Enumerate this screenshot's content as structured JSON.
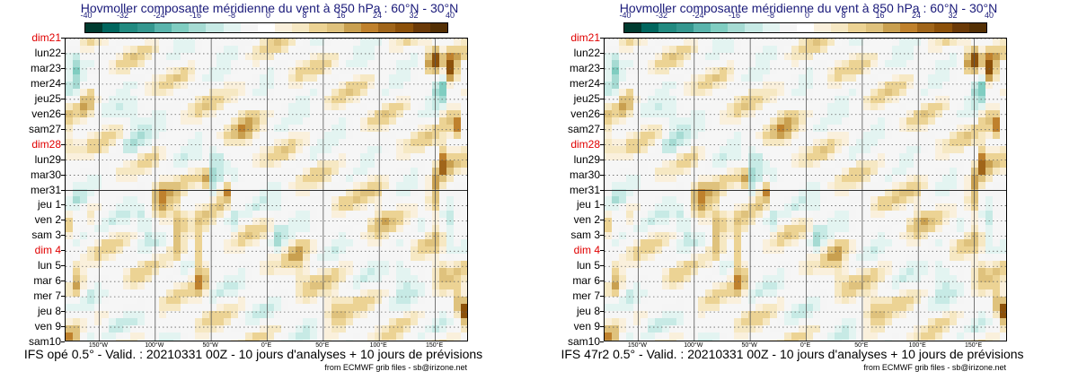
{
  "chart_data": [
    {
      "type": "heatmap",
      "title": "Hovmoller composante méridienne du vent à 850 hPa : 60°N - 30°N",
      "colorbar": {
        "ticks": [
          "-40",
          "-32",
          "-24",
          "-16",
          "-8",
          "0",
          "8",
          "16",
          "24",
          "32",
          "40"
        ],
        "colors": [
          "#003c30",
          "#01665e",
          "#228a80",
          "#35978f",
          "#5ab4ac",
          "#80cdc1",
          "#a6dbd3",
          "#c7eae5",
          "#e3f4f1",
          "#f5f5f5",
          "#ffffff",
          "#faf0dc",
          "#f6e8c3",
          "#ecd394",
          "#dfc27d",
          "#c9a050",
          "#bf812d",
          "#a0651a",
          "#8c510a",
          "#6b3a08",
          "#543005"
        ]
      },
      "y_labels": [
        {
          "text": "dim21",
          "sunday": true
        },
        {
          "text": "lun22",
          "sunday": false
        },
        {
          "text": "mar23",
          "sunday": false
        },
        {
          "text": "mer24",
          "sunday": false
        },
        {
          "text": "jeu25",
          "sunday": false
        },
        {
          "text": "ven26",
          "sunday": false
        },
        {
          "text": "sam27",
          "sunday": false
        },
        {
          "text": "dim28",
          "sunday": true
        },
        {
          "text": "lun29",
          "sunday": false
        },
        {
          "text": "mar30",
          "sunday": false
        },
        {
          "text": "mer31",
          "sunday": false
        },
        {
          "text": "jeu 1",
          "sunday": false
        },
        {
          "text": "ven 2",
          "sunday": false
        },
        {
          "text": "sam 3",
          "sunday": false
        },
        {
          "text": "dim 4",
          "sunday": true
        },
        {
          "text": "lun 5",
          "sunday": false
        },
        {
          "text": "mar 6",
          "sunday": false
        },
        {
          "text": "mer 7",
          "sunday": false
        },
        {
          "text": "jeu 8",
          "sunday": false
        },
        {
          "text": "ven 9",
          "sunday": false
        },
        {
          "text": "sam10",
          "sunday": false
        }
      ],
      "x_labels": [
        {
          "text": "150°W",
          "lon": -150
        },
        {
          "text": "100°W",
          "lon": -100
        },
        {
          "text": "50°W",
          "lon": -50
        },
        {
          "text": "0°E",
          "lon": 0
        },
        {
          "text": "50°E",
          "lon": 50
        },
        {
          "text": "100°E",
          "lon": 100
        },
        {
          "text": "150°E",
          "lon": 150
        }
      ],
      "xlim": [
        -180,
        180
      ],
      "analysis_split": "mer31",
      "footer": "IFS opé 0.5° - Valid. : 20210331 00Z - 10 jours d'analyses + 10 jours de prévisions",
      "credit": "from ECMWF grib files - sb@irizone.net",
      "features": [
        {
          "lon": -172,
          "day": 1.7,
          "value": -14,
          "rlon": 6,
          "rday": 1.6
        },
        {
          "lon": -160,
          "day": 4.0,
          "value": 14,
          "rlon": 7,
          "rday": 1.4
        },
        {
          "lon": -175,
          "day": 7.0,
          "value": 12,
          "rlon": 5,
          "rday": 1.2
        },
        {
          "lon": -168,
          "day": 12.0,
          "value": -12,
          "rlon": 6,
          "rday": 1.5
        },
        {
          "lon": -170,
          "day": 16.0,
          "value": 18,
          "rlon": 6,
          "rday": 1.3
        },
        {
          "lon": -160,
          "day": 19.3,
          "value": -14,
          "rlon": 5,
          "rday": 1.0
        },
        {
          "lon": -175,
          "day": 19.8,
          "value": 16,
          "rlon": 5,
          "rday": 0.8
        },
        {
          "lon": -120,
          "day": 6.5,
          "value": -10,
          "rlon": 10,
          "rday": 2.0
        },
        {
          "lon": -95,
          "day": 10.8,
          "value": 16,
          "rlon": 8,
          "rday": 1.6
        },
        {
          "lon": -80,
          "day": 12.8,
          "value": 20,
          "rlon": 7,
          "rday": 2.0
        },
        {
          "lon": -60,
          "day": 14.8,
          "value": 22,
          "rlon": 6,
          "rday": 2.2
        },
        {
          "lon": -55,
          "day": 9.3,
          "value": 24,
          "rlon": 5,
          "rday": 0.8
        },
        {
          "lon": -50,
          "day": 9.0,
          "value": -14,
          "rlon": 6,
          "rday": 0.8
        },
        {
          "lon": -45,
          "day": 8.0,
          "value": -12,
          "rlon": 5,
          "rday": 1.0
        },
        {
          "lon": -38,
          "day": 10.0,
          "value": 32,
          "rlon": 4,
          "rday": 0.7
        },
        {
          "lon": -30,
          "day": 11.5,
          "value": -10,
          "rlon": 6,
          "rday": 1.5
        },
        {
          "lon": -110,
          "day": 12.0,
          "value": -10,
          "rlon": 7,
          "rday": 1.2
        },
        {
          "lon": -20,
          "day": 5.5,
          "value": 8,
          "rlon": 12,
          "rday": 3.0
        },
        {
          "lon": 10,
          "day": 13.0,
          "value": -10,
          "rlon": 6,
          "rday": 2.0
        },
        {
          "lon": 30,
          "day": 15.0,
          "value": 10,
          "rlon": 10,
          "rday": 2.0
        },
        {
          "lon": 60,
          "day": 18.0,
          "value": 10,
          "rlon": 10,
          "rday": 2.0
        },
        {
          "lon": 100,
          "day": 11.0,
          "value": 8,
          "rlon": 12,
          "rday": 2.5
        },
        {
          "lon": 120,
          "day": 15.0,
          "value": -8,
          "rlon": 8,
          "rday": 2.0
        },
        {
          "lon": 148,
          "day": 1.3,
          "value": 30,
          "rlon": 6,
          "rday": 0.9
        },
        {
          "lon": 165,
          "day": 2.2,
          "value": 34,
          "rlon": 5,
          "rday": 0.9
        },
        {
          "lon": 155,
          "day": 3.5,
          "value": -16,
          "rlon": 5,
          "rday": 1.2
        },
        {
          "lon": 160,
          "day": 5.0,
          "value": 12,
          "rlon": 6,
          "rday": 1.0
        },
        {
          "lon": 170,
          "day": 5.8,
          "value": 26,
          "rlon": 5,
          "rday": 1.0
        },
        {
          "lon": 158,
          "day": 8.0,
          "value": 22,
          "rlon": 5,
          "rday": 1.2
        },
        {
          "lon": 150,
          "day": 10.5,
          "value": 20,
          "rlon": 6,
          "rday": 2.0
        },
        {
          "lon": 162,
          "day": 12.8,
          "value": -14,
          "rlon": 5,
          "rday": 1.2
        },
        {
          "lon": 155,
          "day": 15.5,
          "value": 12,
          "rlon": 8,
          "rday": 1.5
        },
        {
          "lon": 170,
          "day": 17.5,
          "value": 20,
          "rlon": 6,
          "rday": 1.2
        },
        {
          "lon": 176,
          "day": 18.0,
          "value": 30,
          "rlon": 4,
          "rday": 0.8
        }
      ]
    },
    {
      "type": "heatmap",
      "title": "Hovmoller composante méridienne du vent à 850 hPa : 60°N - 30°N",
      "colorbar": {
        "ticks": [
          "-40",
          "-32",
          "-24",
          "-16",
          "-8",
          "0",
          "8",
          "16",
          "24",
          "32",
          "40"
        ],
        "colors": [
          "#003c30",
          "#01665e",
          "#228a80",
          "#35978f",
          "#5ab4ac",
          "#80cdc1",
          "#a6dbd3",
          "#c7eae5",
          "#e3f4f1",
          "#f5f5f5",
          "#ffffff",
          "#faf0dc",
          "#f6e8c3",
          "#ecd394",
          "#dfc27d",
          "#c9a050",
          "#bf812d",
          "#a0651a",
          "#8c510a",
          "#6b3a08",
          "#543005"
        ]
      },
      "y_labels": [
        {
          "text": "dim21",
          "sunday": true
        },
        {
          "text": "lun22",
          "sunday": false
        },
        {
          "text": "mar23",
          "sunday": false
        },
        {
          "text": "mer24",
          "sunday": false
        },
        {
          "text": "jeu25",
          "sunday": false
        },
        {
          "text": "ven26",
          "sunday": false
        },
        {
          "text": "sam27",
          "sunday": false
        },
        {
          "text": "dim28",
          "sunday": true
        },
        {
          "text": "lun29",
          "sunday": false
        },
        {
          "text": "mar30",
          "sunday": false
        },
        {
          "text": "mer31",
          "sunday": false
        },
        {
          "text": "jeu 1",
          "sunday": false
        },
        {
          "text": "ven 2",
          "sunday": false
        },
        {
          "text": "sam 3",
          "sunday": false
        },
        {
          "text": "dim 4",
          "sunday": true
        },
        {
          "text": "lun 5",
          "sunday": false
        },
        {
          "text": "mar 6",
          "sunday": false
        },
        {
          "text": "mer 7",
          "sunday": false
        },
        {
          "text": "jeu 8",
          "sunday": false
        },
        {
          "text": "ven 9",
          "sunday": false
        },
        {
          "text": "sam10",
          "sunday": false
        }
      ],
      "x_labels": [
        {
          "text": "150°W",
          "lon": -150
        },
        {
          "text": "100°W",
          "lon": -100
        },
        {
          "text": "50°W",
          "lon": -50
        },
        {
          "text": "0°E",
          "lon": 0
        },
        {
          "text": "50°E",
          "lon": 50
        },
        {
          "text": "100°E",
          "lon": 100
        },
        {
          "text": "150°E",
          "lon": 150
        }
      ],
      "xlim": [
        -180,
        180
      ],
      "analysis_split": "mer31",
      "footer": "IFS 47r2 0.5° - Valid. : 20210331 00Z - 10 jours d'analyses + 10 jours de prévisions",
      "credit": "from ECMWF grib files - sb@irizone.net",
      "features": [
        {
          "lon": -172,
          "day": 1.7,
          "value": -14,
          "rlon": 6,
          "rday": 1.6
        },
        {
          "lon": -160,
          "day": 4.0,
          "value": 14,
          "rlon": 7,
          "rday": 1.4
        },
        {
          "lon": -175,
          "day": 7.0,
          "value": 12,
          "rlon": 5,
          "rday": 1.2
        },
        {
          "lon": -168,
          "day": 12.0,
          "value": -12,
          "rlon": 6,
          "rday": 1.5
        },
        {
          "lon": -170,
          "day": 16.0,
          "value": 18,
          "rlon": 6,
          "rday": 1.3
        },
        {
          "lon": -160,
          "day": 19.3,
          "value": -14,
          "rlon": 5,
          "rday": 1.0
        },
        {
          "lon": -175,
          "day": 19.8,
          "value": 16,
          "rlon": 5,
          "rday": 0.8
        },
        {
          "lon": -120,
          "day": 6.5,
          "value": -10,
          "rlon": 10,
          "rday": 2.0
        },
        {
          "lon": -95,
          "day": 10.8,
          "value": 16,
          "rlon": 8,
          "rday": 1.6
        },
        {
          "lon": -80,
          "day": 12.8,
          "value": 20,
          "rlon": 7,
          "rday": 2.0
        },
        {
          "lon": -60,
          "day": 14.8,
          "value": 22,
          "rlon": 6,
          "rday": 2.2
        },
        {
          "lon": -55,
          "day": 9.3,
          "value": 24,
          "rlon": 5,
          "rday": 0.8
        },
        {
          "lon": -50,
          "day": 9.0,
          "value": -14,
          "rlon": 6,
          "rday": 0.8
        },
        {
          "lon": -45,
          "day": 8.0,
          "value": -12,
          "rlon": 5,
          "rday": 1.0
        },
        {
          "lon": -38,
          "day": 10.0,
          "value": 32,
          "rlon": 4,
          "rday": 0.7
        },
        {
          "lon": -30,
          "day": 11.5,
          "value": -10,
          "rlon": 6,
          "rday": 1.5
        },
        {
          "lon": -110,
          "day": 12.0,
          "value": -10,
          "rlon": 7,
          "rday": 1.2
        },
        {
          "lon": -20,
          "day": 5.5,
          "value": 8,
          "rlon": 12,
          "rday": 3.0
        },
        {
          "lon": 10,
          "day": 13.0,
          "value": -10,
          "rlon": 6,
          "rday": 2.0
        },
        {
          "lon": 30,
          "day": 15.0,
          "value": 10,
          "rlon": 10,
          "rday": 2.0
        },
        {
          "lon": 60,
          "day": 18.0,
          "value": 10,
          "rlon": 10,
          "rday": 2.0
        },
        {
          "lon": 100,
          "day": 11.0,
          "value": 8,
          "rlon": 12,
          "rday": 2.5
        },
        {
          "lon": 120,
          "day": 15.0,
          "value": -8,
          "rlon": 8,
          "rday": 2.0
        },
        {
          "lon": 148,
          "day": 1.3,
          "value": 30,
          "rlon": 6,
          "rday": 0.9
        },
        {
          "lon": 165,
          "day": 2.2,
          "value": 34,
          "rlon": 5,
          "rday": 0.9
        },
        {
          "lon": 155,
          "day": 3.5,
          "value": -16,
          "rlon": 5,
          "rday": 1.2
        },
        {
          "lon": 160,
          "day": 5.0,
          "value": 12,
          "rlon": 6,
          "rday": 1.0
        },
        {
          "lon": 170,
          "day": 5.8,
          "value": 26,
          "rlon": 5,
          "rday": 1.0
        },
        {
          "lon": 158,
          "day": 8.0,
          "value": 22,
          "rlon": 5,
          "rday": 1.2
        },
        {
          "lon": 150,
          "day": 10.5,
          "value": 20,
          "rlon": 6,
          "rday": 2.0
        },
        {
          "lon": 162,
          "day": 12.8,
          "value": -14,
          "rlon": 5,
          "rday": 1.2
        },
        {
          "lon": 155,
          "day": 15.5,
          "value": 12,
          "rlon": 8,
          "rday": 1.5
        },
        {
          "lon": 170,
          "day": 17.5,
          "value": 20,
          "rlon": 6,
          "rday": 1.2
        },
        {
          "lon": 176,
          "day": 18.0,
          "value": 30,
          "rlon": 4,
          "rday": 0.8
        }
      ]
    }
  ]
}
